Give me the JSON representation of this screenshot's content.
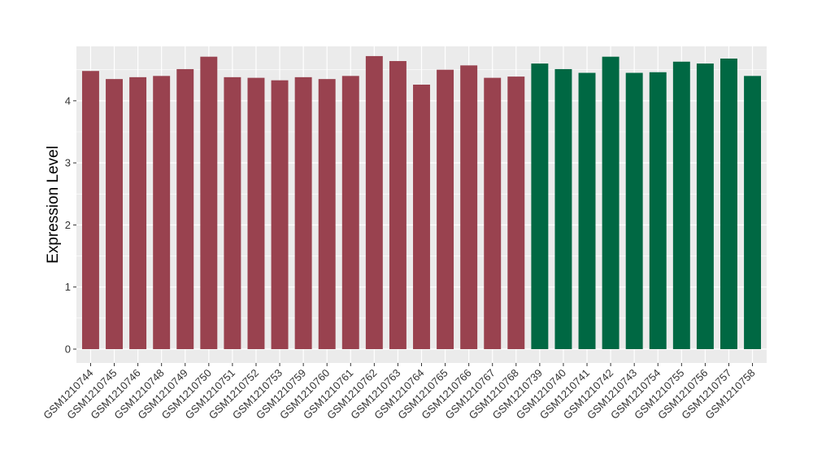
{
  "chart_data": {
    "type": "bar",
    "title": "",
    "xlabel": "",
    "ylabel": "Expression Level",
    "ylim": [
      0,
      4.85
    ],
    "yticks": [
      0,
      1,
      2,
      3,
      4
    ],
    "grid": true,
    "legend": "none",
    "background_color": "#EBEBEB",
    "gridline_color": "#FFFFFF",
    "categories": [
      "GSM1210744",
      "GSM1210745",
      "GSM1210746",
      "GSM1210748",
      "GSM1210749",
      "GSM1210750",
      "GSM1210751",
      "GSM1210752",
      "GSM1210753",
      "GSM1210759",
      "GSM1210760",
      "GSM1210761",
      "GSM1210762",
      "GSM1210763",
      "GSM1210764",
      "GSM1210765",
      "GSM1210766",
      "GSM1210767",
      "GSM1210768",
      "GSM1210739",
      "GSM1210740",
      "GSM1210741",
      "GSM1210742",
      "GSM1210743",
      "GSM1210754",
      "GSM1210755",
      "GSM1210756",
      "GSM1210757",
      "GSM1210758"
    ],
    "values": [
      4.48,
      4.35,
      4.38,
      4.4,
      4.51,
      4.71,
      4.38,
      4.37,
      4.33,
      4.38,
      4.35,
      4.4,
      4.72,
      4.64,
      4.26,
      4.5,
      4.57,
      4.37,
      4.39,
      4.6,
      4.51,
      4.45,
      4.71,
      4.45,
      4.46,
      4.63,
      4.6,
      4.68,
      4.4
    ],
    "bar_colors": [
      "#99424F",
      "#99424F",
      "#99424F",
      "#99424F",
      "#99424F",
      "#99424F",
      "#99424F",
      "#99424F",
      "#99424F",
      "#99424F",
      "#99424F",
      "#99424F",
      "#99424F",
      "#99424F",
      "#99424F",
      "#99424F",
      "#99424F",
      "#99424F",
      "#99424F",
      "#006843",
      "#006843",
      "#006843",
      "#006843",
      "#006843",
      "#006843",
      "#006843",
      "#006843",
      "#006843",
      "#006843"
    ]
  }
}
